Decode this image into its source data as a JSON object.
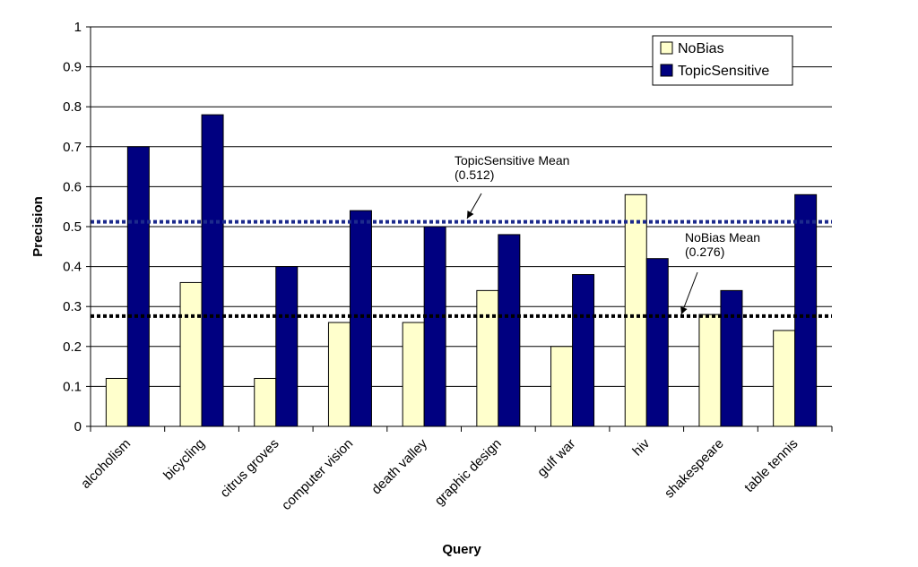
{
  "chart_data": {
    "type": "bar",
    "xlabel": "Query",
    "ylabel": "Precision",
    "ylim": [
      0,
      1
    ],
    "yticks": [
      "0",
      "0.1",
      "0.2",
      "0.3",
      "0.4",
      "0.5",
      "0.6",
      "0.7",
      "0.8",
      "0.9",
      "1"
    ],
    "grid": true,
    "legend_position": "top-right",
    "categories": [
      "alcoholism",
      "bicycling",
      "citrus groves",
      "computer vision",
      "death valley",
      "graphic design",
      "gulf war",
      "hiv",
      "shakespeare",
      "table tennis"
    ],
    "series": [
      {
        "name": "NoBias",
        "color": "#ffffcc",
        "values": [
          0.12,
          0.36,
          0.12,
          0.26,
          0.26,
          0.34,
          0.2,
          0.58,
          0.28,
          0.24
        ]
      },
      {
        "name": "TopicSensitive",
        "color": "#000080",
        "values": [
          0.7,
          0.78,
          0.4,
          0.54,
          0.5,
          0.48,
          0.38,
          0.42,
          0.34,
          0.58
        ]
      }
    ],
    "reference_lines": [
      {
        "series": "TopicSensitive",
        "value": 0.512,
        "label_line1": "TopicSensitive Mean",
        "label_line2": "(0.512)",
        "color": "#1c2a8c"
      },
      {
        "series": "NoBias",
        "value": 0.276,
        "label_line1": "NoBias Mean",
        "label_line2": "(0.276)",
        "color": "#000000"
      }
    ]
  }
}
